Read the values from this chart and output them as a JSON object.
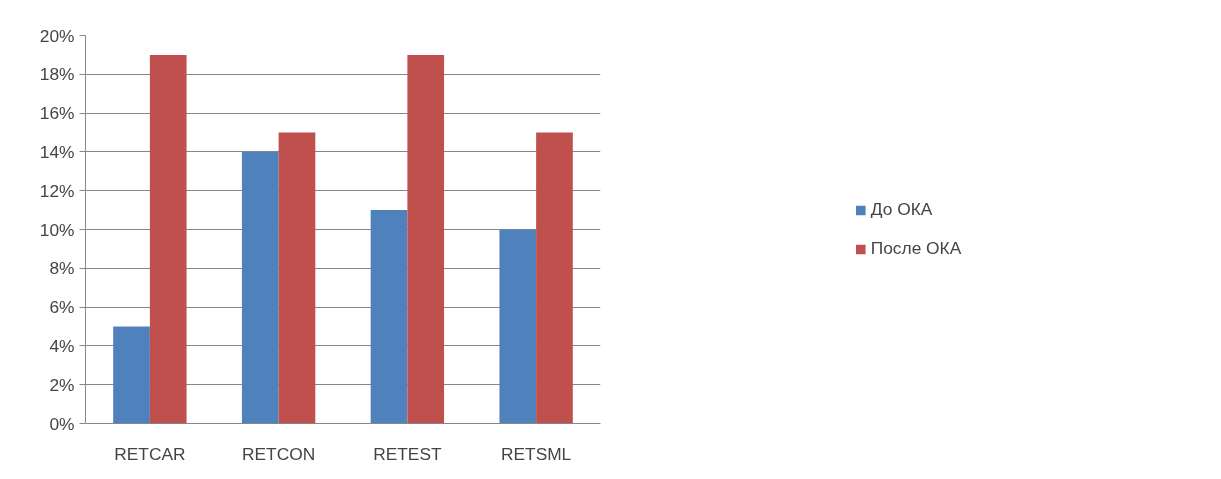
{
  "chart_data": {
    "type": "bar",
    "categories": [
      "RETCAR",
      "RETCON",
      "RETEST",
      "RETSML"
    ],
    "series": [
      {
        "name": "До ОКА",
        "color": "#4f81bd",
        "values": [
          5,
          14,
          11,
          10
        ]
      },
      {
        "name": "После ОКА",
        "color": "#c0504d",
        "values": [
          19,
          15,
          19,
          15
        ]
      }
    ],
    "ylim": [
      0,
      20
    ],
    "yticks": [
      {
        "value": 0,
        "label": "0%"
      },
      {
        "value": 2,
        "label": "2%"
      },
      {
        "value": 4,
        "label": "4%"
      },
      {
        "value": 6,
        "label": "6%"
      },
      {
        "value": 8,
        "label": "8%"
      },
      {
        "value": 10,
        "label": "10%"
      },
      {
        "value": 12,
        "label": "12%"
      },
      {
        "value": 14,
        "label": "14%"
      },
      {
        "value": 16,
        "label": "16%"
      },
      {
        "value": 18,
        "label": "18%"
      },
      {
        "value": 20,
        "label": "20%"
      }
    ],
    "grid": "y",
    "legend": "right"
  }
}
